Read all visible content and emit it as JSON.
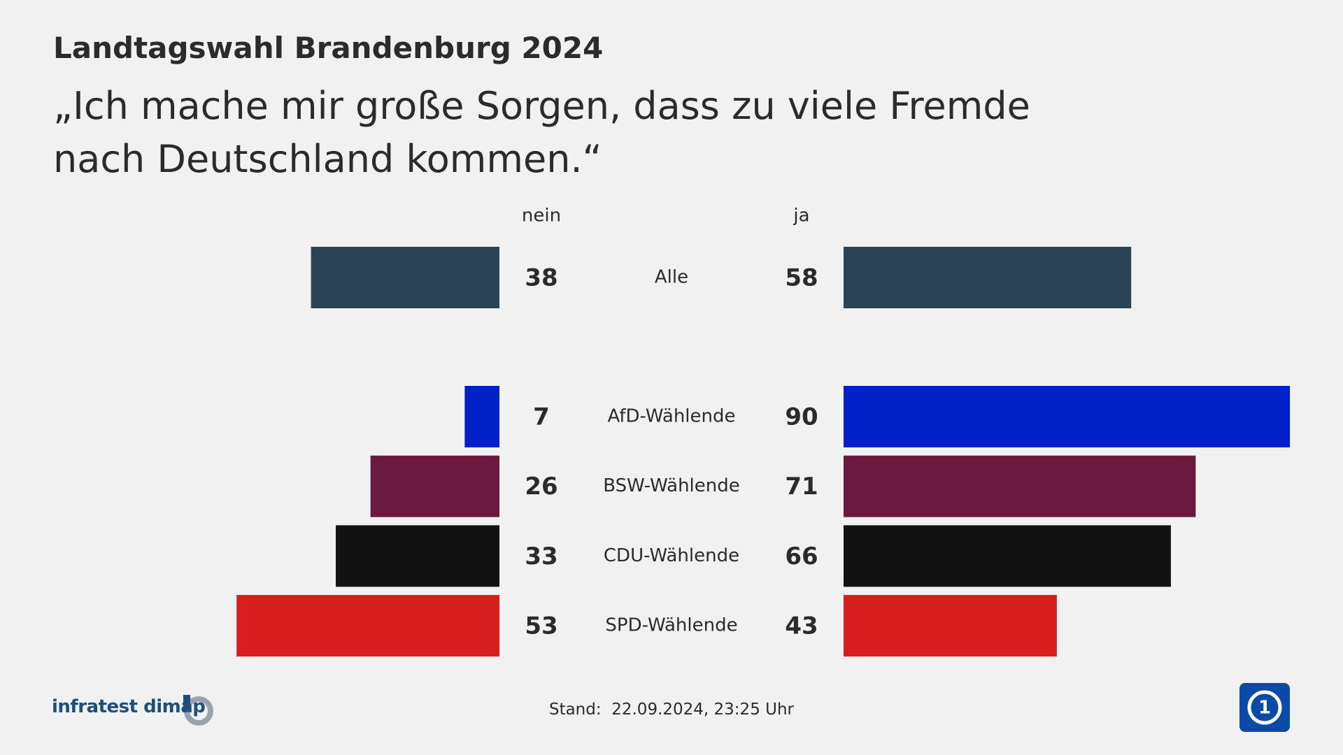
{
  "chart_data": {
    "type": "butterfly",
    "title": "Landtagswahl Brandenburg 2024",
    "subtitle": "„Ich mache mir große Sorgen, dass zu viele Fremde nach Deutschland kommen.“",
    "categories": [
      "Alle",
      "AfD-Wählende",
      "BSW-Wählende",
      "CDU-Wählende",
      "SPD-Wählende"
    ],
    "colors": [
      "#2a4456",
      "#0021c8",
      "#6a1a3f",
      "#121212",
      "#d61e1e"
    ],
    "series": [
      {
        "name": "nein",
        "values": [
          38,
          7,
          26,
          33,
          53
        ]
      },
      {
        "name": "ja",
        "values": [
          58,
          90,
          71,
          66,
          43
        ]
      }
    ],
    "stand_label": "Stand:",
    "stand": "22.09.2024, 23:25 Uhr",
    "source": "infratest dimap"
  }
}
